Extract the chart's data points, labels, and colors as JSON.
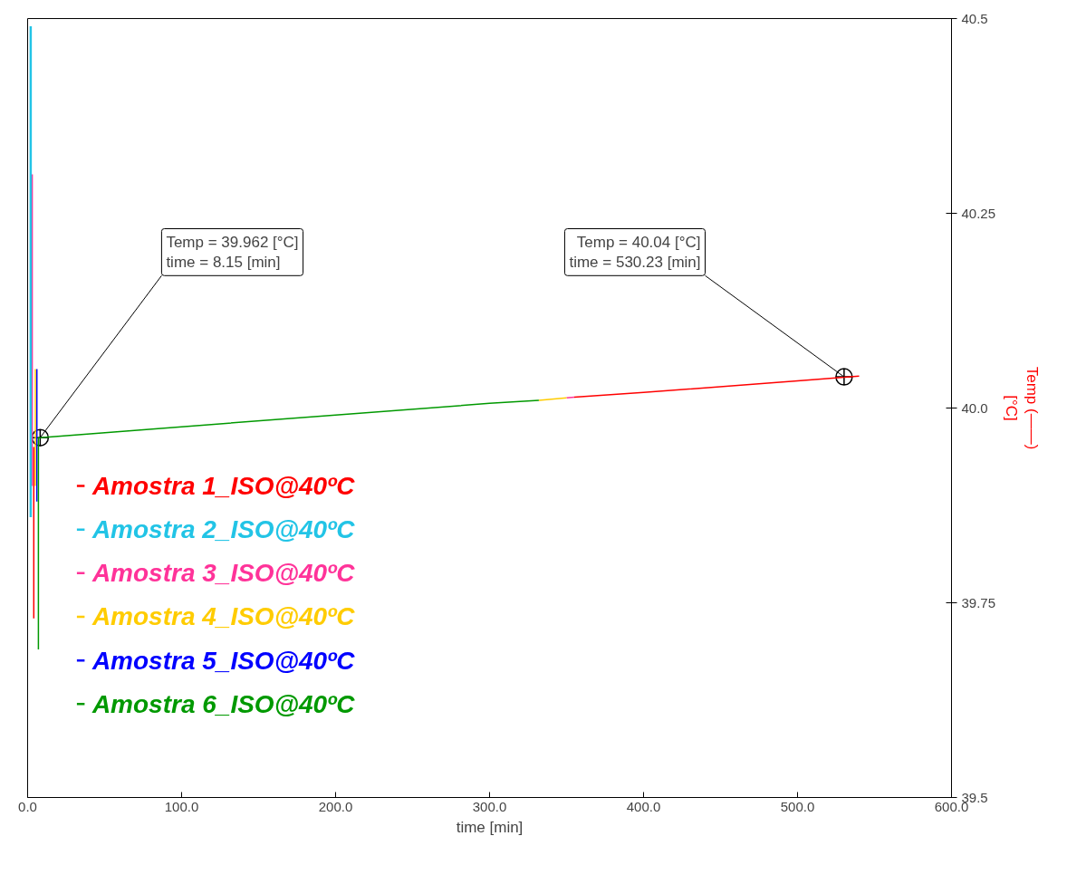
{
  "chart_data": {
    "type": "line",
    "xlabel": "time [min]",
    "ylabel": "Temp (——)\n[°C]",
    "xlim": [
      0,
      600
    ],
    "xticks": [
      {
        "value": 0,
        "label": "0.0"
      },
      {
        "value": 100,
        "label": "100.0"
      },
      {
        "value": 200,
        "label": "200.0"
      },
      {
        "value": 300,
        "label": "300.0"
      },
      {
        "value": 400,
        "label": "400.0"
      },
      {
        "value": 500,
        "label": "500.0"
      },
      {
        "value": 600,
        "label": "600.0"
      }
    ],
    "ylim": [
      39.5,
      40.5
    ],
    "yticks": [
      40.5,
      40.25,
      {
        "value": 40.0,
        "label": "40.0"
      },
      39.75,
      39.5
    ],
    "grid": false,
    "legend": "left",
    "marker": "none",
    "line_style": "solid",
    "series": [
      {
        "name": "Amostra 1_ISO@40ºC",
        "color": "#ff0000",
        "x": [
          4,
          4,
          100,
          355,
          400,
          500,
          540
        ],
        "values": [
          39.73,
          39.95,
          null,
          40.014,
          40.02,
          40.035,
          40.041
        ]
      },
      {
        "name": "Amostra 2_ISO@40ºC",
        "color": "#22c4e6",
        "x": [
          2,
          2
        ],
        "values": [
          40.49,
          39.86
        ]
      },
      {
        "name": "Amostra 3_ISO@40ºC",
        "color": "#ff3399",
        "x": [
          3,
          3,
          100,
          350,
          355
        ],
        "values": [
          40.3,
          39.9,
          null,
          40.013,
          40.014
        ]
      },
      {
        "name": "Amostra 4_ISO@40ºC",
        "color": "#ffcc00",
        "x": [
          5,
          5,
          100,
          332,
          350
        ],
        "values": [
          39.9,
          40.05,
          null,
          40.01,
          40.013
        ]
      },
      {
        "name": "Amostra 5_ISO@40ºC",
        "color": "#0000ff",
        "x": [
          6,
          6
        ],
        "values": [
          39.88,
          40.05
        ]
      },
      {
        "name": "Amostra 6_ISO@40ºC",
        "color": "#009900",
        "x": [
          7,
          7,
          8.15,
          100,
          200,
          300,
          332
        ],
        "values": [
          39.69,
          39.962,
          39.962,
          39.976,
          39.991,
          40.006,
          40.01
        ]
      }
    ],
    "annotations": [
      {
        "text": "Temp = 39.962 [°C]\ntime = 8.15 [min]",
        "x": 8.15,
        "y": 39.962
      },
      {
        "text": "Temp = 40.04 [°C]\ntime = 530.23 [min]",
        "x": 530.23,
        "y": 40.04
      }
    ]
  }
}
